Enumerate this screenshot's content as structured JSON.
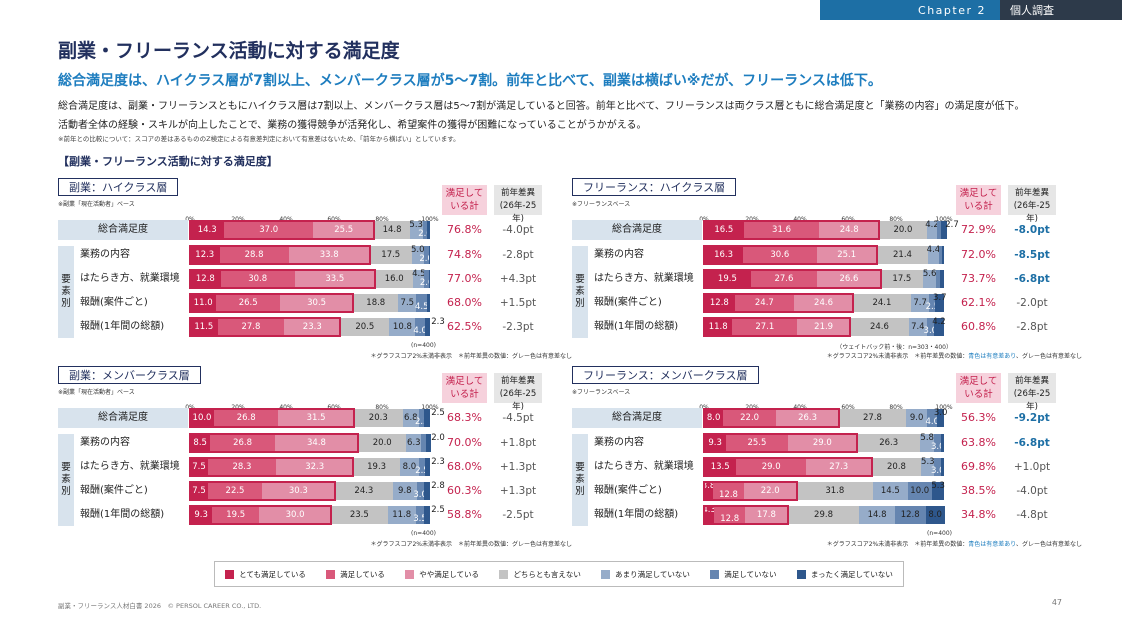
{
  "header": {
    "chapter": "Chapter 2",
    "section": "個人調査"
  },
  "title": "副業・フリーランス活動に対する満足度",
  "subtitle": "総合満足度は、ハイクラス層が7割以上、メンバークラス層が5～7割。前年と比べて、副業は横ばい※だが、フリーランスは低下。",
  "desc_line1": "総合満足度は、副業・フリーランスともにハイクラス層は7割以上、メンバークラス層は5～7割が満足していると回答。前年と比べて、フリーランスは両クラス層ともに総合満足度と「業務の内容」の満足度が低下。",
  "desc_line2": "活動者全体の経験・スキルが向上したことで、業務の獲得競争が活発化し、希望案件の獲得が困難になっていることがうかがえる。",
  "note": "※前年との比較について：スコアの差はあるもののZ検定による有意差判定において有意差はないため、「前年から横ばい」としています。",
  "section_title": "【副業・フリーランス活動に対する満足度】",
  "col_sat": "満足して\nいる計",
  "col_diff": "前年差異\n(26年-25年)",
  "category_label": "要素別",
  "footnote_left": "＊グラフスコア2%未満非表示　＊前年差異の数値：グレー色は有意差なし",
  "footnote_right_a": "＊グラフスコア2%未満非表示　＊前年差異の数値：",
  "footnote_right_b": "青色は有意差あり",
  "footnote_right_c": "、グレー色は有意差なし",
  "axis_ticks": [
    "0%",
    "20%",
    "40%",
    "60%",
    "80%",
    "100%"
  ],
  "colors": [
    "#c4224e",
    "#d9587a",
    "#e28ea7",
    "#c3c3c3",
    "#96acc9",
    "#6585b0",
    "#2e578c"
  ],
  "legend": [
    "とても満足している",
    "満足している",
    "やや満足している",
    "どちらとも言えない",
    "あまり満足していない",
    "満足していない",
    "まったく満足していない"
  ],
  "footer": "副業・フリーランス人材白書 2026　© PERSOL CAREER CO., LTD.",
  "page": "47",
  "chart_data": [
    {
      "type": "bar",
      "stacked": true,
      "title": "副業：ハイクラス層",
      "base": "※副業「現在活動者」ベース",
      "n": "(n=400)",
      "categories": [
        "総合満足度",
        "業務の内容",
        "はたらき方、就業環境",
        "報酬(案件ごと)",
        "報酬(1年間の総額)"
      ],
      "series": [
        [
          14.3,
          12.3,
          12.8,
          11.0,
          11.5
        ],
        [
          37.0,
          28.8,
          30.8,
          26.5,
          27.8
        ],
        [
          25.5,
          33.8,
          33.5,
          30.5,
          23.3
        ],
        [
          14.8,
          17.5,
          16.0,
          18.8,
          20.5
        ],
        [
          5.3,
          5.0,
          4.5,
          7.5,
          10.8
        ],
        [
          2.0,
          2.0,
          2.0,
          4.5,
          4.0
        ],
        [
          1.2,
          0.8,
          0.5,
          1.2,
          2.3
        ]
      ],
      "labels": [
        [
          "14.3",
          "12.3",
          "12.8",
          "11.0",
          "11.5"
        ],
        [
          "37.0",
          "28.8",
          "30.8",
          "26.5",
          "27.8"
        ],
        [
          "25.5",
          "33.8",
          "33.5",
          "30.5",
          "23.3"
        ],
        [
          "14.8",
          "17.5",
          "16.0",
          "18.8",
          "20.5"
        ],
        [
          "5.3",
          "5.0",
          "4.5",
          "7.5",
          "10.8"
        ],
        [
          "2.0",
          "2.0",
          "2.0",
          "4.5",
          "4.0"
        ],
        [
          "",
          "",
          "",
          "",
          "2.3"
        ]
      ],
      "satisfied": [
        "76.8%",
        "74.8%",
        "77.0%",
        "68.0%",
        "62.5%"
      ],
      "diff": [
        "-4.0pt",
        "-2.8pt",
        "+4.3pt",
        "+1.5pt",
        "-2.3pt"
      ],
      "sig": [
        false,
        false,
        false,
        false,
        false
      ]
    },
    {
      "type": "bar",
      "stacked": true,
      "title": "フリーランス：ハイクラス層",
      "base": "※フリーランスベース",
      "n": "（ウェイトバック前・後：n=303・400）",
      "categories": [
        "総合満足度",
        "業務の内容",
        "はたらき方、就業環境",
        "報酬(案件ごと)",
        "報酬(1年間の総額)"
      ],
      "series": [
        [
          16.5,
          16.3,
          19.5,
          12.8,
          11.8
        ],
        [
          31.6,
          30.6,
          27.6,
          24.7,
          27.1
        ],
        [
          24.8,
          25.1,
          26.6,
          24.6,
          21.9
        ],
        [
          20.0,
          21.4,
          17.5,
          24.1,
          24.6
        ],
        [
          4.2,
          4.4,
          5.6,
          7.7,
          7.4
        ],
        [
          1.5,
          1.4,
          1.6,
          2.5,
          3.0
        ],
        [
          2.7,
          1.0,
          1.6,
          3.7,
          4.2
        ]
      ],
      "labels": [
        [
          "16.5",
          "16.3",
          "19.5",
          "12.8",
          "11.8"
        ],
        [
          "31.6",
          "30.6",
          "27.6",
          "24.7",
          "27.1"
        ],
        [
          "24.8",
          "25.1",
          "26.6",
          "24.6",
          "21.9"
        ],
        [
          "20.0",
          "21.4",
          "17.5",
          "24.1",
          "24.6"
        ],
        [
          "4.2",
          "4.4",
          "5.6",
          "7.7",
          "7.4"
        ],
        [
          "",
          "",
          "",
          "2.5",
          "3.0"
        ],
        [
          "2.7",
          "",
          "",
          "3.7",
          "4.2"
        ]
      ],
      "satisfied": [
        "72.9%",
        "72.0%",
        "73.7%",
        "62.1%",
        "60.8%"
      ],
      "diff": [
        "-8.0pt",
        "-8.5pt",
        "-6.8pt",
        "-2.0pt",
        "-2.8pt"
      ],
      "sig": [
        true,
        true,
        true,
        false,
        false
      ]
    },
    {
      "type": "bar",
      "stacked": true,
      "title": "副業：メンバークラス層",
      "base": "※副業「現在活動者」ベース",
      "n": "(n=400)",
      "categories": [
        "総合満足度",
        "業務の内容",
        "はたらき方、就業環境",
        "報酬(案件ごと)",
        "報酬(1年間の総額)"
      ],
      "series": [
        [
          10.0,
          8.5,
          7.5,
          7.5,
          9.3
        ],
        [
          26.8,
          26.8,
          28.3,
          22.5,
          19.5
        ],
        [
          31.5,
          34.8,
          32.3,
          30.3,
          30.0
        ],
        [
          20.3,
          20.0,
          19.3,
          24.3,
          23.5
        ],
        [
          6.8,
          6.3,
          8.0,
          9.8,
          11.8
        ],
        [
          2.3,
          2.0,
          2.5,
          3.0,
          3.5
        ],
        [
          2.5,
          2.0,
          2.3,
          2.8,
          2.5
        ]
      ],
      "labels": [
        [
          "10.0",
          "8.5",
          "7.5",
          "7.5",
          "9.3"
        ],
        [
          "26.8",
          "26.8",
          "28.3",
          "22.5",
          "19.5"
        ],
        [
          "31.5",
          "34.8",
          "32.3",
          "30.3",
          "30.0"
        ],
        [
          "20.3",
          "20.0",
          "19.3",
          "24.3",
          "23.5"
        ],
        [
          "6.8",
          "6.3",
          "8.0",
          "9.8",
          "11.8"
        ],
        [
          "2.3",
          "",
          "2.5",
          "3.0",
          "3.5"
        ],
        [
          "2.5",
          "2.0",
          "2.3",
          "2.8",
          "2.5"
        ]
      ],
      "satisfied": [
        "68.3%",
        "70.0%",
        "68.0%",
        "60.3%",
        "58.8%"
      ],
      "diff": [
        "-4.5pt",
        "+1.8pt",
        "+1.3pt",
        "+1.3pt",
        "-2.5pt"
      ],
      "sig": [
        false,
        false,
        false,
        false,
        false
      ]
    },
    {
      "type": "bar",
      "stacked": true,
      "title": "フリーランス：メンバークラス層",
      "base": "※フリーランスベース",
      "n": "(n=400)",
      "categories": [
        "総合満足度",
        "業務の内容",
        "はたらき方、就業環境",
        "報酬(案件ごと)",
        "報酬(1年間の総額)"
      ],
      "series": [
        [
          8.0,
          9.3,
          13.5,
          3.8,
          4.3
        ],
        [
          22.0,
          25.5,
          29.0,
          12.8,
          12.8
        ],
        [
          26.3,
          29.0,
          27.3,
          22.0,
          17.8
        ],
        [
          27.8,
          26.3,
          20.8,
          31.8,
          29.8
        ],
        [
          9.0,
          5.8,
          5.3,
          14.5,
          14.8
        ],
        [
          4.0,
          3.0,
          3.0,
          10.0,
          12.8
        ],
        [
          3.0,
          1.2,
          1.2,
          5.3,
          8.0
        ]
      ],
      "labels": [
        [
          "8.0",
          "9.3",
          "13.5",
          "3.8",
          "4.3"
        ],
        [
          "22.0",
          "25.5",
          "29.0",
          "12.8",
          "12.8"
        ],
        [
          "26.3",
          "29.0",
          "27.3",
          "22.0",
          "17.8"
        ],
        [
          "27.8",
          "26.3",
          "20.8",
          "31.8",
          "29.8"
        ],
        [
          "9.0",
          "5.8",
          "5.3",
          "14.5",
          "14.8"
        ],
        [
          "4.0",
          "3.0",
          "3.0",
          "10.0",
          "12.8"
        ],
        [
          "3.0",
          "",
          "",
          "5.3",
          "8.0"
        ]
      ],
      "satisfied": [
        "56.3%",
        "63.8%",
        "69.8%",
        "38.5%",
        "34.8%"
      ],
      "diff": [
        "-9.2pt",
        "-6.8pt",
        "+1.0pt",
        "-4.0pt",
        "-4.8pt"
      ],
      "sig": [
        true,
        true,
        false,
        false,
        false
      ]
    }
  ]
}
